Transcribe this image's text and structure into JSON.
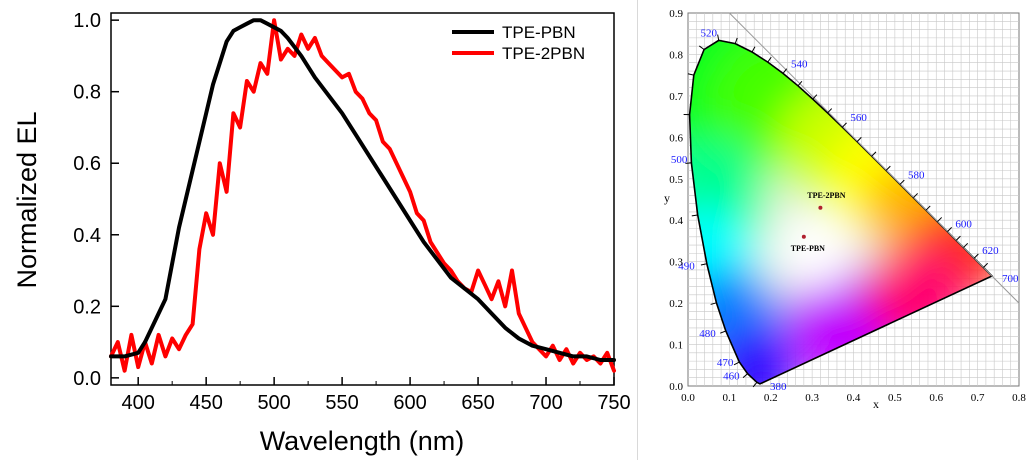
{
  "chart_data": [
    {
      "type": "line",
      "xlabel": "Wavelength (nm)",
      "ylabel": "Normalized EL",
      "xlim": [
        380,
        750
      ],
      "ylim": [
        -0.02,
        1.02
      ],
      "xticks": [
        400,
        450,
        500,
        550,
        600,
        650,
        700,
        750
      ],
      "yticks": [
        0.0,
        0.2,
        0.4,
        0.6,
        0.8,
        1.0
      ],
      "tick_labels_x": [
        "400",
        "450",
        "500",
        "550",
        "600",
        "650",
        "700",
        "750"
      ],
      "tick_labels_y": [
        "0.0",
        "0.2",
        "0.4",
        "0.6",
        "0.8",
        "1.0"
      ],
      "legend": "top-right",
      "grid": false,
      "series": [
        {
          "name": "TPE-PBN",
          "color": "#000000",
          "x": [
            380,
            390,
            400,
            405,
            410,
            415,
            420,
            425,
            430,
            435,
            440,
            445,
            450,
            455,
            460,
            465,
            470,
            475,
            480,
            485,
            490,
            495,
            500,
            505,
            510,
            520,
            530,
            540,
            550,
            560,
            570,
            580,
            590,
            600,
            610,
            620,
            630,
            640,
            650,
            660,
            670,
            680,
            690,
            700,
            710,
            720,
            730,
            740,
            750
          ],
          "y": [
            0.06,
            0.06,
            0.07,
            0.1,
            0.14,
            0.18,
            0.22,
            0.32,
            0.42,
            0.5,
            0.58,
            0.66,
            0.74,
            0.82,
            0.88,
            0.94,
            0.97,
            0.98,
            0.99,
            1.0,
            1.0,
            0.99,
            0.98,
            0.97,
            0.95,
            0.9,
            0.84,
            0.79,
            0.74,
            0.68,
            0.62,
            0.56,
            0.5,
            0.44,
            0.38,
            0.33,
            0.28,
            0.25,
            0.22,
            0.18,
            0.14,
            0.11,
            0.09,
            0.08,
            0.07,
            0.06,
            0.06,
            0.05,
            0.05
          ]
        },
        {
          "name": "TPE-2PBN",
          "color": "#ff0000",
          "x": [
            380,
            385,
            390,
            395,
            400,
            405,
            410,
            415,
            420,
            425,
            430,
            435,
            440,
            445,
            450,
            455,
            460,
            465,
            470,
            475,
            480,
            485,
            490,
            495,
            500,
            505,
            510,
            515,
            520,
            525,
            530,
            535,
            540,
            545,
            550,
            555,
            560,
            565,
            570,
            575,
            580,
            585,
            590,
            595,
            600,
            605,
            610,
            615,
            620,
            625,
            630,
            635,
            640,
            645,
            650,
            655,
            660,
            665,
            670,
            675,
            680,
            685,
            690,
            695,
            700,
            705,
            710,
            715,
            720,
            725,
            730,
            735,
            740,
            745,
            750
          ],
          "y": [
            0.06,
            0.1,
            0.02,
            0.12,
            0.03,
            0.1,
            0.04,
            0.12,
            0.06,
            0.11,
            0.08,
            0.12,
            0.15,
            0.36,
            0.46,
            0.4,
            0.6,
            0.52,
            0.74,
            0.7,
            0.83,
            0.8,
            0.88,
            0.85,
            1.0,
            0.89,
            0.92,
            0.9,
            0.96,
            0.92,
            0.95,
            0.9,
            0.88,
            0.86,
            0.84,
            0.85,
            0.8,
            0.78,
            0.74,
            0.72,
            0.66,
            0.64,
            0.6,
            0.56,
            0.52,
            0.46,
            0.44,
            0.38,
            0.35,
            0.32,
            0.3,
            0.27,
            0.25,
            0.24,
            0.3,
            0.26,
            0.22,
            0.27,
            0.2,
            0.3,
            0.18,
            0.14,
            0.1,
            0.08,
            0.06,
            0.09,
            0.05,
            0.08,
            0.04,
            0.07,
            0.05,
            0.06,
            0.04,
            0.07,
            0.02
          ]
        }
      ]
    },
    {
      "type": "scatter",
      "xlabel": "x",
      "ylabel": "y",
      "xlim": [
        0.0,
        0.8
      ],
      "ylim": [
        0.0,
        0.9
      ],
      "grid": true,
      "tick_labels_x": [
        "0.0",
        "0.1",
        "0.2",
        "0.3",
        "0.4",
        "0.5",
        "0.6",
        "0.7",
        "0.8"
      ],
      "tick_labels_y": [
        "0.0",
        "0.1",
        "0.2",
        "0.3",
        "0.4",
        "0.5",
        "0.6",
        "0.7",
        "0.8",
        "0.9"
      ],
      "locus": [
        [
          0.1741,
          0.005
        ],
        [
          0.1666,
          0.0089
        ],
        [
          0.144,
          0.0297
        ],
        [
          0.1241,
          0.0578
        ],
        [
          0.0913,
          0.1327
        ],
        [
          0.0687,
          0.2007
        ],
        [
          0.0454,
          0.295
        ],
        [
          0.0235,
          0.4127
        ],
        [
          0.0082,
          0.5384
        ],
        [
          0.0039,
          0.6548
        ],
        [
          0.0139,
          0.7502
        ],
        [
          0.0389,
          0.812
        ],
        [
          0.0743,
          0.8338
        ],
        [
          0.1142,
          0.8262
        ],
        [
          0.1547,
          0.8059
        ],
        [
          0.1929,
          0.7816
        ],
        [
          0.2296,
          0.7543
        ],
        [
          0.2658,
          0.7243
        ],
        [
          0.3016,
          0.6923
        ],
        [
          0.3373,
          0.6589
        ],
        [
          0.3731,
          0.6245
        ],
        [
          0.4087,
          0.5896
        ],
        [
          0.4441,
          0.5547
        ],
        [
          0.4788,
          0.5202
        ],
        [
          0.5125,
          0.4866
        ],
        [
          0.5448,
          0.4544
        ],
        [
          0.5752,
          0.4242
        ],
        [
          0.6029,
          0.3965
        ],
        [
          0.627,
          0.3725
        ],
        [
          0.6482,
          0.3514
        ],
        [
          0.6658,
          0.334
        ],
        [
          0.6915,
          0.3083
        ],
        [
          0.714,
          0.2859
        ],
        [
          0.7347,
          0.2653
        ]
      ],
      "wavelength_labels": [
        {
          "nm": "380",
          "x": 0.1741,
          "y": 0.005
        },
        {
          "nm": "460",
          "x": 0.144,
          "y": 0.0297
        },
        {
          "nm": "470",
          "x": 0.1241,
          "y": 0.0578
        },
        {
          "nm": "480",
          "x": 0.0913,
          "y": 0.1327
        },
        {
          "nm": "490",
          "x": 0.0454,
          "y": 0.295
        },
        {
          "nm": "500",
          "x": 0.0082,
          "y": 0.5384
        },
        {
          "nm": "520",
          "x": 0.0743,
          "y": 0.8338
        },
        {
          "nm": "540",
          "x": 0.2296,
          "y": 0.7543
        },
        {
          "nm": "560",
          "x": 0.3731,
          "y": 0.6245
        },
        {
          "nm": "580",
          "x": 0.5125,
          "y": 0.4866
        },
        {
          "nm": "600",
          "x": 0.627,
          "y": 0.3725
        },
        {
          "nm": "620",
          "x": 0.6915,
          "y": 0.3083
        },
        {
          "nm": "700",
          "x": 0.7347,
          "y": 0.2653
        }
      ],
      "points": [
        {
          "name": "TPE-2PBN",
          "x": 0.32,
          "y": 0.43
        },
        {
          "name": "TPE-PBN",
          "x": 0.28,
          "y": 0.36
        }
      ],
      "colors": {
        "label": "#1a1aff",
        "point": "#b0202e",
        "grid": "#c8c8c8"
      }
    }
  ]
}
